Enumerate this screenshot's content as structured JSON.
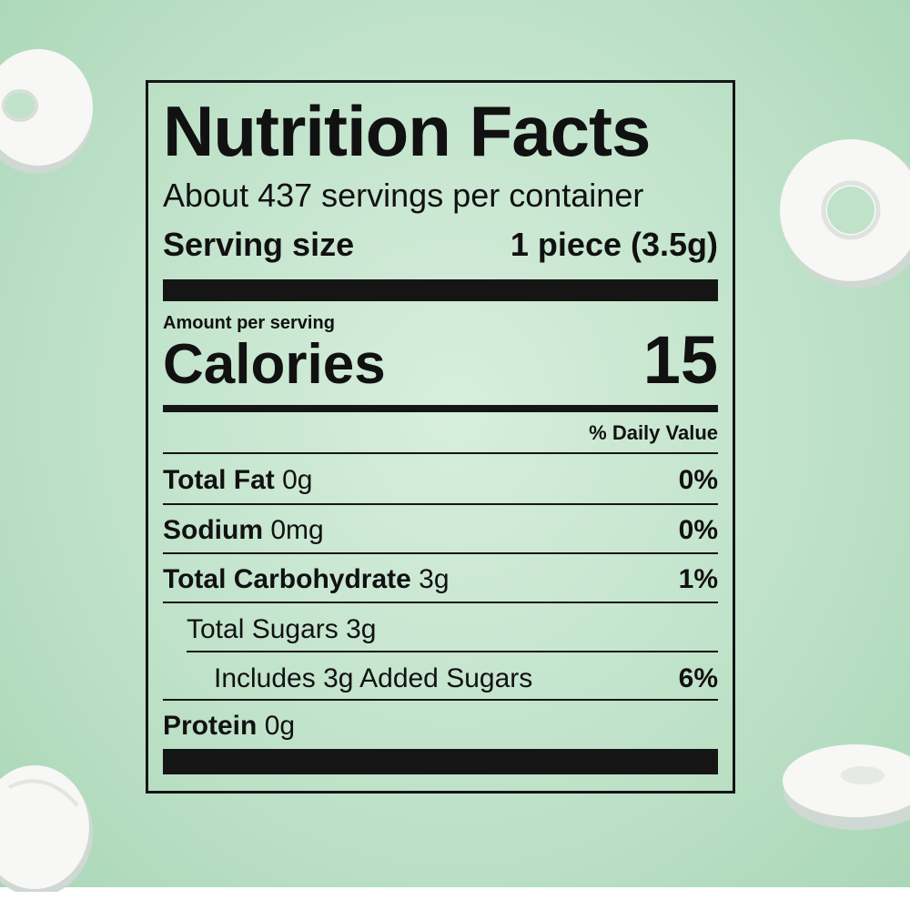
{
  "label": {
    "title": "Nutrition Facts",
    "servings_per_container": "About 437 servings per container",
    "serving_size_label": "Serving size",
    "serving_size_value": "1 piece (3.5g)",
    "amount_per_serving": "Amount per serving",
    "calories_label": "Calories",
    "calories_value": "15",
    "daily_value_header": "% Daily Value",
    "nutrients": [
      {
        "name": "Total Fat",
        "amount": "0g",
        "dv": "0%"
      },
      {
        "name": "Sodium",
        "amount": "0mg",
        "dv": "0%"
      },
      {
        "name": "Total Carbohydrate",
        "amount": "3g",
        "dv": "1%"
      },
      {
        "name": "Total Sugars 3g",
        "amount": "",
        "dv": ""
      },
      {
        "name": "Includes 3g Added Sugars",
        "amount": "",
        "dv": "6%"
      },
      {
        "name": "Protein",
        "amount": "0g",
        "dv": ""
      }
    ]
  },
  "colors": {
    "background": "#bfe2c9",
    "ink": "#151515",
    "mint_candy": "#f7f7f5"
  },
  "icons": [
    "mint-candy-icon"
  ]
}
